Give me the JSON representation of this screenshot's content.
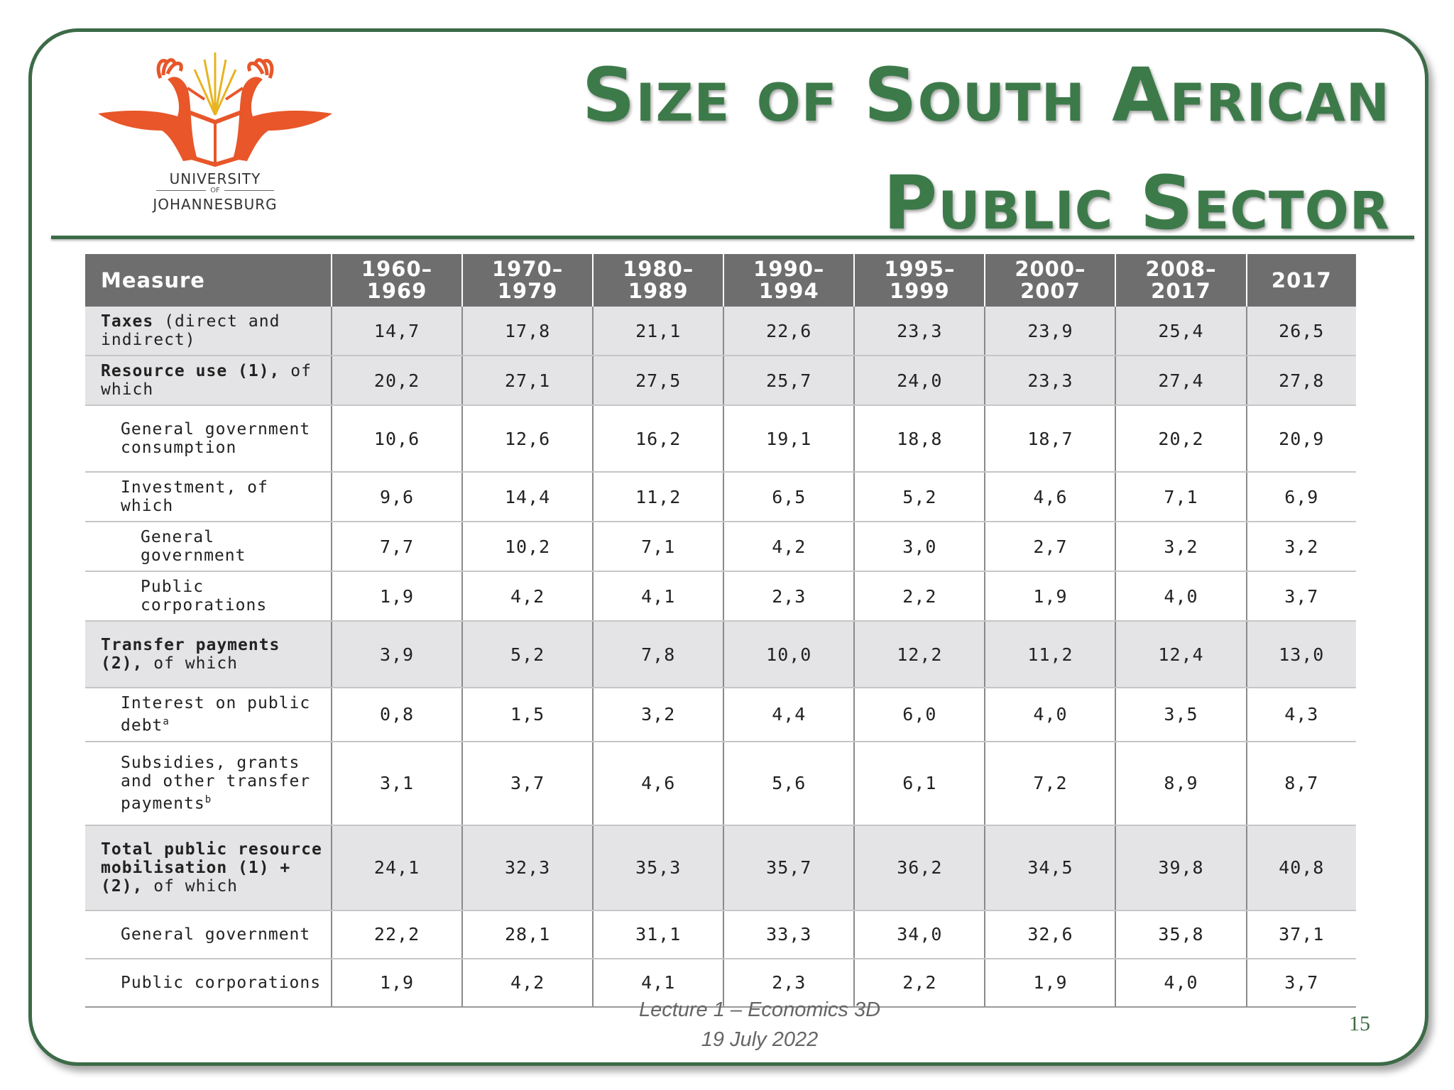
{
  "slide": {
    "title_line1": "Size of South African",
    "title_line2": "Public Sector",
    "logo": {
      "line1": "UNIVERSITY",
      "of": "OF",
      "line2": "JOHANNESBURG",
      "accent_color": "#e8562a"
    },
    "footer_line1": "Lecture 1 – Economics 3D",
    "footer_line2": "19 July 2022",
    "page_number": "15",
    "theme_color": "#3c6b47"
  },
  "table": {
    "headers": [
      {
        "line1": "Measure",
        "line2": ""
      },
      {
        "line1": "1960–",
        "line2": "1969"
      },
      {
        "line1": "1970–",
        "line2": "1979"
      },
      {
        "line1": "1980–",
        "line2": "1989"
      },
      {
        "line1": "1990–",
        "line2": "1994"
      },
      {
        "line1": "1995–",
        "line2": "1999"
      },
      {
        "line1": "2000–",
        "line2": "2007"
      },
      {
        "line1": "2008–",
        "line2": "2017"
      },
      {
        "line1": "2017",
        "line2": ""
      }
    ],
    "rows": [
      {
        "label_bold": "Taxes",
        "label_rest": " (direct and indirect)",
        "sup": "",
        "indent": 0,
        "shade": true,
        "height": 68,
        "values": [
          "14,7",
          "17,8",
          "21,1",
          "22,6",
          "23,3",
          "23,9",
          "25,4",
          "26,5"
        ]
      },
      {
        "label_bold": "Resource use (1),",
        "label_rest": " of which",
        "sup": "",
        "indent": 0,
        "shade": true,
        "height": 68,
        "values": [
          "20,2",
          "27,1",
          "27,5",
          "25,7",
          "24,0",
          "23,3",
          "27,4",
          "27,8"
        ]
      },
      {
        "label_bold": "",
        "label_rest": "General government consumption",
        "sup": "",
        "indent": 1,
        "shade": false,
        "height": 94,
        "values": [
          "10,6",
          "12,6",
          "16,2",
          "19,1",
          "18,8",
          "18,7",
          "20,2",
          "20,9"
        ]
      },
      {
        "label_bold": "",
        "label_rest": "Investment, of which",
        "sup": "",
        "indent": 1,
        "shade": false,
        "height": 68,
        "values": [
          "9,6",
          "14,4",
          "11,2",
          "6,5",
          "5,2",
          "4,6",
          "7,1",
          "6,9"
        ]
      },
      {
        "label_bold": "",
        "label_rest": "General government",
        "sup": "",
        "indent": 2,
        "shade": false,
        "height": 68,
        "values": [
          "7,7",
          "10,2",
          "7,1",
          "4,2",
          "3,0",
          "2,7",
          "3,2",
          "3,2"
        ]
      },
      {
        "label_bold": "",
        "label_rest": "Public corporations",
        "sup": "",
        "indent": 2,
        "shade": false,
        "height": 68,
        "values": [
          "1,9",
          "4,2",
          "4,1",
          "2,3",
          "2,2",
          "1,9",
          "4,0",
          "3,7"
        ]
      },
      {
        "label_bold": "Transfer pay­ments (2),",
        "label_rest": " of which",
        "sup": "",
        "indent": 0,
        "shade": true,
        "height": 94,
        "values": [
          "3,9",
          "5,2",
          "7,8",
          "10,0",
          "12,2",
          "11,2",
          "12,4",
          "13,0"
        ]
      },
      {
        "label_bold": "",
        "label_rest": "Interest on public debt",
        "sup": "a",
        "indent": 1,
        "shade": false,
        "height": 68,
        "values": [
          "0,8",
          "1,5",
          "3,2",
          "4,4",
          "6,0",
          "4,0",
          "3,5",
          "4,3"
        ]
      },
      {
        "label_bold": "",
        "label_rest": "Subsidies, grants and other transfer payments",
        "sup": "b",
        "indent": 1,
        "shade": false,
        "height": 118,
        "values": [
          "3,1",
          "3,7",
          "4,6",
          "5,6",
          "6,1",
          "7,2",
          "8,9",
          "8,7"
        ]
      },
      {
        "label_bold": "Total public resource mobili­sation (1) + (2),",
        "label_rest": " of which",
        "sup": "",
        "indent": 0,
        "shade": true,
        "height": 120,
        "values": [
          "24,1",
          "32,3",
          "35,3",
          "35,7",
          "36,2",
          "34,5",
          "39,8",
          "40,8"
        ]
      },
      {
        "label_bold": "",
        "label_rest": "General government",
        "sup": "",
        "indent": 1,
        "shade": false,
        "height": 68,
        "values": [
          "22,2",
          "28,1",
          "31,1",
          "33,3",
          "34,0",
          "32,6",
          "35,8",
          "37,1"
        ]
      },
      {
        "label_bold": "",
        "label_rest": "Public corporations",
        "sup": "",
        "indent": 1,
        "shade": false,
        "height": 68,
        "values": [
          "1,9",
          "4,2",
          "4,1",
          "2,3",
          "2,2",
          "1,9",
          "4,0",
          "3,7"
        ]
      }
    ]
  }
}
